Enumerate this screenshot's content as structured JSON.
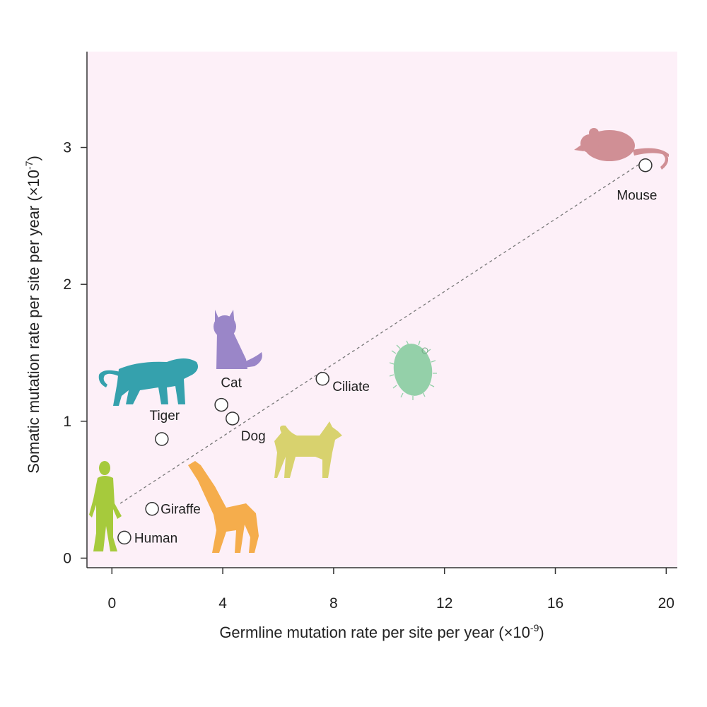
{
  "chart_data": {
    "type": "scatter",
    "xlabel": "Germline mutation rate per site per year (×10",
    "xlabel_exp": "-9",
    "xlabel_end": ")",
    "ylabel": "Somatic mutation rate per site per year (×10",
    "ylabel_exp": "-7",
    "ylabel_end": ")",
    "xlim": [
      -0.9,
      20.4
    ],
    "ylim": [
      -0.07,
      3.7
    ],
    "xticks": [
      0,
      4,
      8,
      12,
      16,
      20
    ],
    "yticks": [
      0,
      1,
      2,
      3
    ],
    "plot_background": "#fdf0f8",
    "grid": false,
    "points": [
      {
        "label": "Human",
        "x": 0.45,
        "y": 0.15
      },
      {
        "label": "Giraffe",
        "x": 1.45,
        "y": 0.36
      },
      {
        "label": "Tiger",
        "x": 1.8,
        "y": 0.87
      },
      {
        "label": "Cat",
        "x": 3.95,
        "y": 1.12
      },
      {
        "label": "Dog",
        "x": 4.35,
        "y": 1.02
      },
      {
        "label": "Ciliate",
        "x": 7.6,
        "y": 1.31
      },
      {
        "label": "Mouse",
        "x": 19.25,
        "y": 2.87
      }
    ],
    "trend_line": {
      "style": "dashed",
      "x": [
        0.3,
        19.2
      ],
      "y": [
        0.4,
        2.9
      ]
    },
    "silhouettes": [
      {
        "icon": "human-silhouette-icon",
        "color": "#a6ca3c"
      },
      {
        "icon": "giraffe-silhouette-icon",
        "color": "#f5ad4c"
      },
      {
        "icon": "tiger-silhouette-icon",
        "color": "#35a1ad"
      },
      {
        "icon": "cat-silhouette-icon",
        "color": "#9a86c8"
      },
      {
        "icon": "dog-silhouette-icon",
        "color": "#d8d26e"
      },
      {
        "icon": "ciliate-silhouette-icon",
        "color": "#94d0a9"
      },
      {
        "icon": "mouse-silhouette-icon",
        "color": "#d08f95"
      }
    ]
  }
}
